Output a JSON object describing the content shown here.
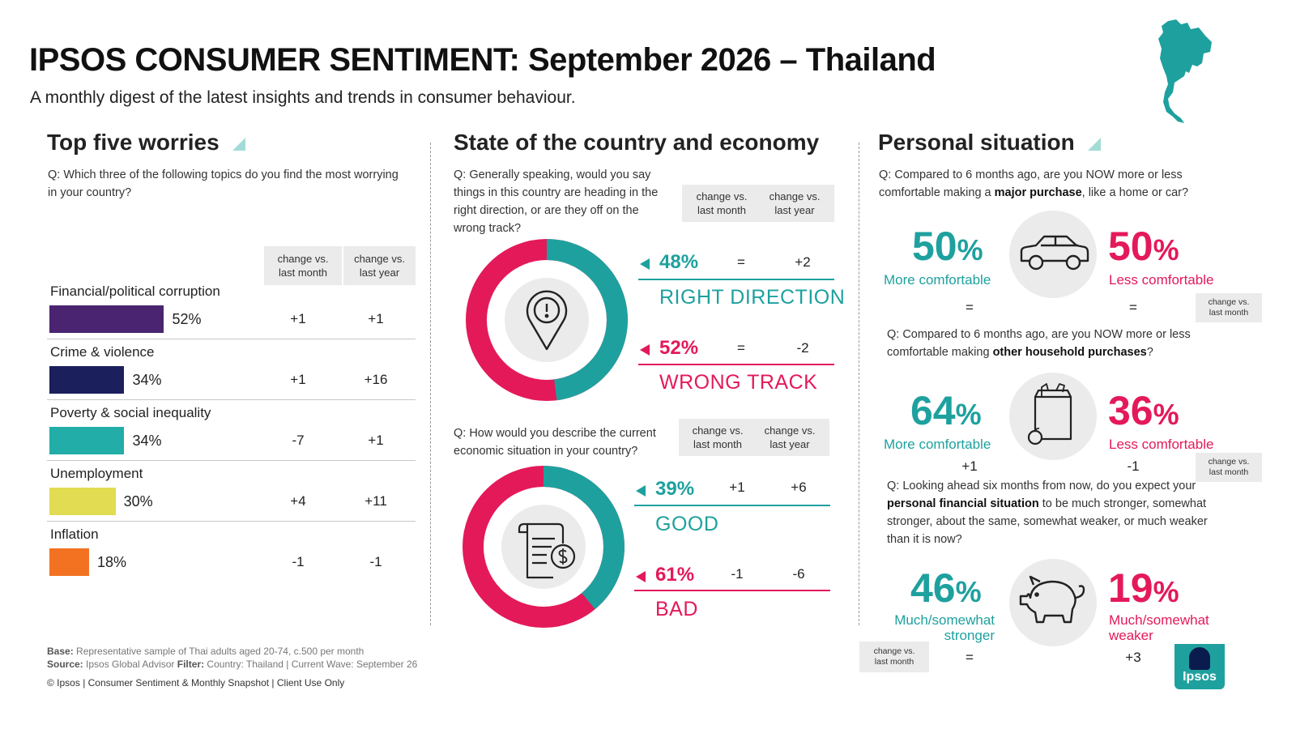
{
  "title": "IPSOS CONSUMER SENTIMENT: September 2026 – Thailand",
  "subtitle": "A monthly digest of the latest insights and trends in consumer behaviour.",
  "colors": {
    "teal": "#1ea19e",
    "pink": "#e4195a",
    "corruption": "#4a2470",
    "crime": "#1b1f5c",
    "poverty": "#22ada8",
    "unemployment": "#e1dc52",
    "inflation": "#f27221"
  },
  "worries": {
    "heading": "Top five worries",
    "question": "Q: Which three of the following topics do you find the most worrying in your country?",
    "col1": [
      "change vs.",
      "last month"
    ],
    "col2": [
      "change vs.",
      "last year"
    ],
    "items": [
      {
        "label": "Financial/political corruption",
        "pct": "52%",
        "value": 52,
        "m": "+1",
        "y": "+1",
        "color": "#4a2470"
      },
      {
        "label": "Crime & violence",
        "pct": "34%",
        "value": 34,
        "m": "+1",
        "y": "+16",
        "color": "#1b1f5c"
      },
      {
        "label": "Poverty & social inequality",
        "pct": "34%",
        "value": 34,
        "m": "-7",
        "y": "+1",
        "color": "#22ada8"
      },
      {
        "label": "Unemployment",
        "pct": "30%",
        "value": 30,
        "m": "+4",
        "y": "+11",
        "color": "#e1dc52"
      },
      {
        "label": "Inflation",
        "pct": "18%",
        "value": 18,
        "m": "-1",
        "y": "-1",
        "color": "#f27221"
      }
    ]
  },
  "country": {
    "heading": "State of the country and economy",
    "q1": "Q: Generally speaking, would you say things in this country are heading in the right direction, or are they off on the wrong track?",
    "col1": [
      "change vs.",
      "last month"
    ],
    "col2": [
      "change vs.",
      "last year"
    ],
    "right": {
      "pct": "48%",
      "value": 48,
      "m": "=",
      "y": "+2",
      "label": "RIGHT DIRECTION"
    },
    "wrong": {
      "pct": "52%",
      "value": 52,
      "m": "=",
      "y": "-2",
      "label": "WRONG TRACK"
    },
    "q2": "Q: How would you describe the current economic situation in your country?",
    "good": {
      "pct": "39%",
      "value": 39,
      "m": "+1",
      "y": "+6",
      "label": "GOOD"
    },
    "bad": {
      "pct": "61%",
      "value": 61,
      "m": "-1",
      "y": "-6",
      "label": "BAD"
    }
  },
  "personal": {
    "heading": "Personal situation",
    "q1_pre": "Q: Compared to 6 months ago, are you NOW more or less comfortable making a ",
    "q1_bold": "major purchase",
    "q1_post": ", like a home or car?",
    "p1": {
      "left_num": "50",
      "left_label": "More comfortable",
      "left_chg": "=",
      "right_num": "50",
      "right_label": "Less comfortable",
      "right_chg": "="
    },
    "q2_pre": "Q: Compared to 6 months ago, are you NOW more or less comfortable making ",
    "q2_bold": "other household purchases",
    "q2_post": "?",
    "p2": {
      "left_num": "64",
      "left_label": "More comfortable",
      "left_chg": "+1",
      "right_num": "36",
      "right_label": "Less comfortable",
      "right_chg": "-1"
    },
    "q3_pre": "Q: Looking ahead six months from now, do you expect your ",
    "q3_bold": "personal financial situation",
    "q3_post": " to be much stronger, somewhat stronger, about the same, somewhat weaker, or much weaker than it is now?",
    "p3": {
      "left_num": "46",
      "left_label1": "Much/somewhat",
      "left_label2": "stronger",
      "left_chg": "=",
      "right_num": "19",
      "right_label1": "Much/somewhat",
      "right_label2": "weaker",
      "right_chg": "+3"
    },
    "pct_sign": "%",
    "chg_label": [
      "change vs.",
      "last month"
    ]
  },
  "footer": {
    "base_label": "Base:",
    "base_text": " Representative sample of Thai adults aged 20-74, c.500 per month",
    "source_label": "Source:",
    "source_text": " Ipsos Global Advisor ",
    "filter_label": "Filter:",
    "filter_text": " Country: Thailand | Current Wave: September 26",
    "copyright": "© Ipsos | Consumer Sentiment & Monthly Snapshot | Client Use Only",
    "logo": "Ipsos"
  }
}
